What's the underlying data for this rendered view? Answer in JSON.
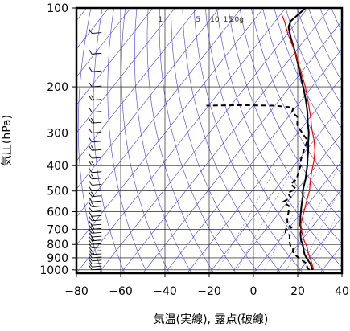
{
  "chart_data": {
    "type": "line",
    "title": "",
    "xlabel": "気温(実線), 露点(破線)",
    "ylabel": "気圧(hPa)",
    "xlim": [
      -80,
      40
    ],
    "ylim": [
      1030,
      100
    ],
    "y_scale": "log",
    "x_ticks": [
      "−80",
      "−60",
      "−40",
      "−20",
      "0",
      "20",
      "40"
    ],
    "x_tick_values": [
      -80,
      -60,
      -40,
      -20,
      0,
      20,
      40
    ],
    "y_ticks": [
      "100",
      "200",
      "300",
      "400",
      "500",
      "600",
      "700",
      "800",
      "900",
      "1000"
    ],
    "y_tick_values": [
      100,
      200,
      300,
      400,
      500,
      600,
      700,
      800,
      900,
      1000
    ],
    "mixing_ratio_labels": [
      "1",
      "5",
      "10",
      "15",
      "20g"
    ],
    "mixing_ratio_label_x": [
      -42,
      -25,
      -17.5,
      -11.5,
      -7.5
    ],
    "grid": true,
    "series": [
      {
        "style": "solid",
        "color": "#000000",
        "points": [
          [
            25.5,
            1000
          ],
          [
            24,
            975
          ],
          [
            22.5,
            950
          ],
          [
            20.5,
            925
          ],
          [
            18.5,
            900
          ],
          [
            16.5,
            875
          ],
          [
            15,
            850
          ],
          [
            13.5,
            825
          ],
          [
            12,
            800
          ],
          [
            10,
            775
          ],
          [
            8.5,
            750
          ],
          [
            7,
            725
          ],
          [
            6,
            700
          ],
          [
            4,
            675
          ],
          [
            2.5,
            650
          ],
          [
            1,
            625
          ],
          [
            -0.5,
            600
          ],
          [
            -2,
            575
          ],
          [
            -3.5,
            550
          ],
          [
            -5,
            525
          ],
          [
            -7,
            500
          ],
          [
            -8.5,
            475
          ],
          [
            -10,
            450
          ],
          [
            -12,
            425
          ],
          [
            -14,
            400
          ],
          [
            -16.5,
            375
          ],
          [
            -19,
            350
          ],
          [
            -22,
            325
          ],
          [
            -25,
            300
          ],
          [
            -29,
            275
          ],
          [
            -33,
            250
          ],
          [
            -38,
            225
          ],
          [
            -44,
            200
          ],
          [
            -51,
            175
          ],
          [
            -59,
            150
          ],
          [
            -67,
            130
          ],
          [
            -72,
            118
          ],
          [
            -73,
            112
          ],
          [
            -72,
            106
          ],
          [
            -71,
            100
          ]
        ]
      },
      {
        "style": "dashed",
        "color": "#000000",
        "points": [
          [
            24,
            1000
          ],
          [
            22,
            975
          ],
          [
            21,
            950
          ],
          [
            18,
            925
          ],
          [
            15,
            900
          ],
          [
            12,
            875
          ],
          [
            10,
            850
          ],
          [
            9,
            825
          ],
          [
            7,
            810
          ],
          [
            5,
            780
          ],
          [
            3,
            740
          ],
          [
            0,
            720
          ],
          [
            -1,
            700
          ],
          [
            1,
            690
          ],
          [
            -2,
            670
          ],
          [
            -4,
            640
          ],
          [
            -6,
            600
          ],
          [
            -8,
            570
          ],
          [
            -12,
            550
          ],
          [
            -10,
            530
          ],
          [
            -13,
            510
          ],
          [
            -11,
            490
          ],
          [
            -15,
            470
          ],
          [
            -14,
            450
          ],
          [
            -16,
            420
          ],
          [
            -17,
            400
          ],
          [
            -19,
            380
          ],
          [
            -21,
            350
          ],
          [
            -23,
            320
          ],
          [
            -28,
            300
          ],
          [
            -33,
            280
          ],
          [
            -36,
            260
          ],
          [
            -40,
            250
          ],
          [
            -41,
            240
          ],
          [
            -50,
            236
          ],
          [
            -65,
            235
          ],
          [
            -81,
            236
          ]
        ]
      },
      {
        "style": "solid",
        "color": "#ff0000",
        "points": [
          [
            26,
            1000
          ],
          [
            22,
            930
          ],
          [
            18,
            870
          ],
          [
            15,
            820
          ],
          [
            11,
            770
          ],
          [
            7,
            715
          ],
          [
            4,
            670
          ],
          [
            2,
            625
          ],
          [
            0,
            580
          ],
          [
            -2,
            540
          ],
          [
            -4,
            500
          ],
          [
            -7,
            460
          ],
          [
            -10,
            420
          ],
          [
            -13,
            380
          ],
          [
            -16,
            350
          ],
          [
            -20,
            320
          ],
          [
            -25,
            290
          ],
          [
            -30,
            260
          ],
          [
            -36,
            230
          ],
          [
            -43,
            200
          ],
          [
            -52,
            170
          ],
          [
            -61,
            145
          ],
          [
            -70,
            125
          ],
          [
            -76,
            112
          ],
          [
            -80,
            105
          ]
        ]
      }
    ],
    "wind_barbs": {
      "x": -73,
      "pressures": [
        1000,
        975,
        950,
        925,
        900,
        875,
        850,
        825,
        800,
        775,
        750,
        725,
        700,
        675,
        650,
        625,
        600,
        575,
        550,
        525,
        500,
        475,
        450,
        425,
        400,
        375,
        350,
        325,
        300,
        275,
        250,
        225,
        200,
        175,
        150,
        125
      ],
      "barb_counts": [
        1,
        1,
        1,
        1,
        1,
        2,
        1,
        1,
        2,
        2,
        1,
        2,
        2,
        1,
        2,
        1,
        1,
        2,
        1,
        2,
        1,
        1,
        2,
        1,
        2,
        1,
        2,
        1,
        1,
        2,
        1,
        2,
        1,
        1,
        1,
        1
      ],
      "color": "#000000"
    }
  }
}
